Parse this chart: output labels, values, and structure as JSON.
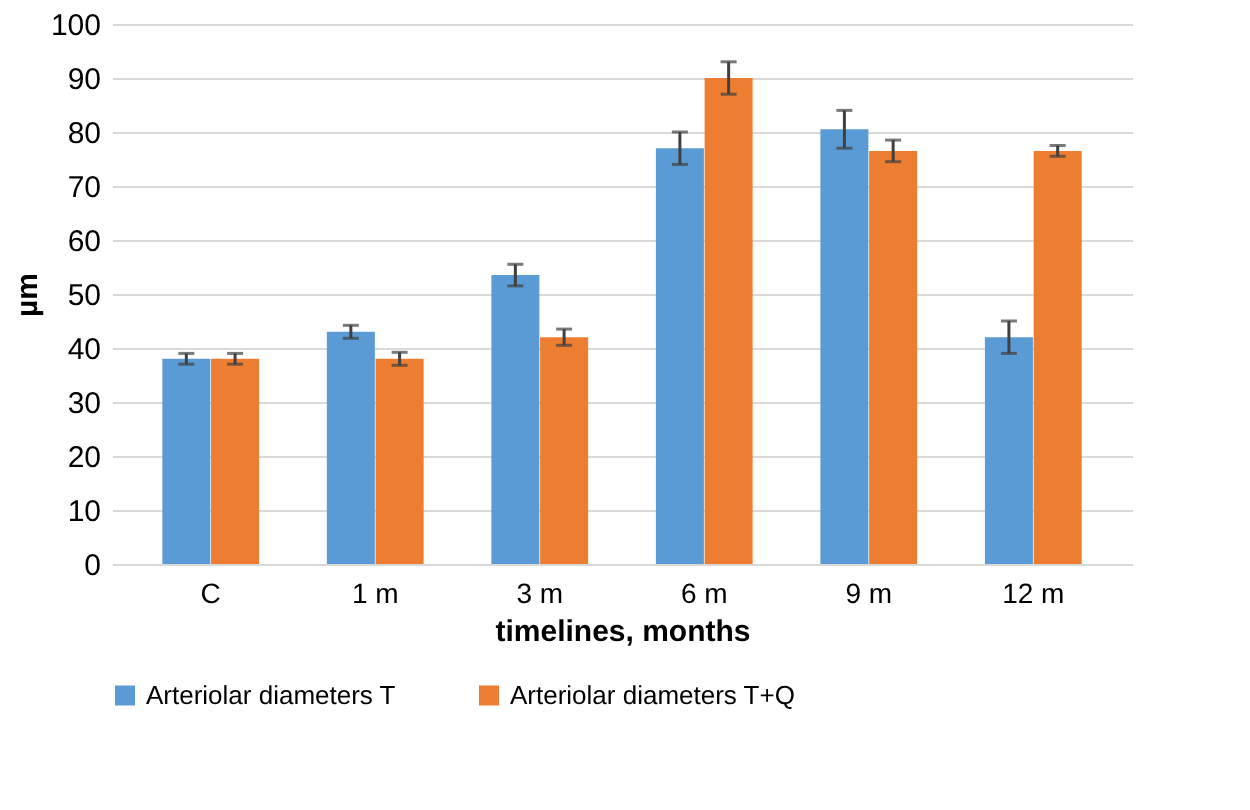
{
  "chart_data": {
    "type": "bar",
    "xlabel": "timelines, months",
    "ylabel": "µm",
    "categories": [
      "C",
      "1 m",
      "3 m",
      "6 m",
      "9 m",
      "12 m"
    ],
    "series": [
      {
        "name": "Arteriolar diameters T",
        "color": "#5b9bd5",
        "values": [
          38,
          43,
          53.5,
          77,
          80.5,
          42
        ],
        "errors": [
          1,
          1.2,
          2,
          3,
          3.5,
          3
        ]
      },
      {
        "name": "Arteriolar diameters T+Q",
        "color": "#ed7d31",
        "values": [
          38,
          38,
          42,
          90,
          76.5,
          76.5
        ],
        "errors": [
          1,
          1.2,
          1.5,
          3,
          2,
          1
        ]
      }
    ],
    "ylim": [
      0,
      100
    ],
    "yticks": [
      0,
      10,
      20,
      30,
      40,
      50,
      60,
      70,
      80,
      90,
      100
    ],
    "grid": "y",
    "legend": "bottom"
  }
}
